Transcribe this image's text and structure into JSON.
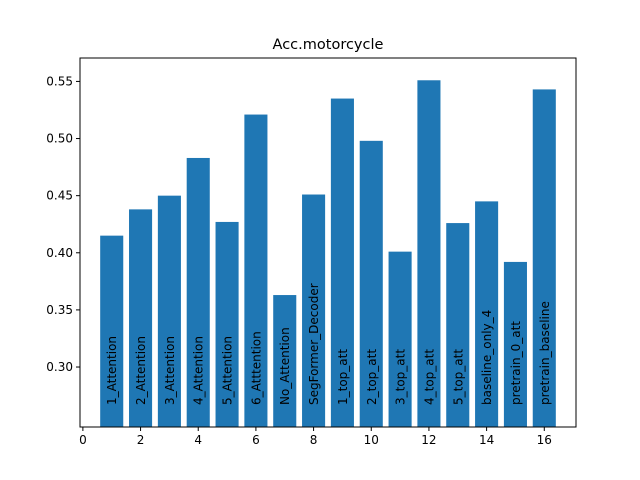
{
  "chart_data": {
    "type": "bar",
    "title": "Acc.motorcycle",
    "xlabel": "",
    "ylabel": "",
    "xlim": [
      -0.1,
      17.1
    ],
    "ylim": [
      0.2475,
      0.5705
    ],
    "xticks": [
      0,
      2,
      4,
      6,
      8,
      10,
      12,
      14,
      16
    ],
    "yticks": [
      0.3,
      0.35,
      0.4,
      0.45,
      0.5,
      0.55
    ],
    "ytick_labels": [
      "0.30",
      "0.35",
      "0.40",
      "0.45",
      "0.50",
      "0.55"
    ],
    "bar_color": "#1f77b4",
    "grid": false,
    "legend": "none",
    "bars": [
      {
        "x": 1,
        "label": "1_Attention",
        "value": 0.415
      },
      {
        "x": 2,
        "label": "2_Attention",
        "value": 0.438
      },
      {
        "x": 3,
        "label": "3_Attention",
        "value": 0.45
      },
      {
        "x": 4,
        "label": "4_Attention",
        "value": 0.483
      },
      {
        "x": 5,
        "label": "5_Attention",
        "value": 0.427
      },
      {
        "x": 6,
        "label": "6_Atttention",
        "value": 0.521
      },
      {
        "x": 7,
        "label": "No_Attention",
        "value": 0.363
      },
      {
        "x": 8,
        "label": "SegFormer_Decoder",
        "value": 0.451
      },
      {
        "x": 9,
        "label": "1_top_att",
        "value": 0.535
      },
      {
        "x": 10,
        "label": "2_top_att",
        "value": 0.498
      },
      {
        "x": 11,
        "label": "3_top_att",
        "value": 0.401
      },
      {
        "x": 12,
        "label": "4_top_att",
        "value": 0.551
      },
      {
        "x": 13,
        "label": "5_top_att",
        "value": 0.426
      },
      {
        "x": 14,
        "label": "baseline_only_4",
        "value": 0.445
      },
      {
        "x": 15,
        "label": "pretrain_0_att",
        "value": 0.392
      },
      {
        "x": 16,
        "label": "pretrain_baseline",
        "value": 0.543
      }
    ]
  }
}
